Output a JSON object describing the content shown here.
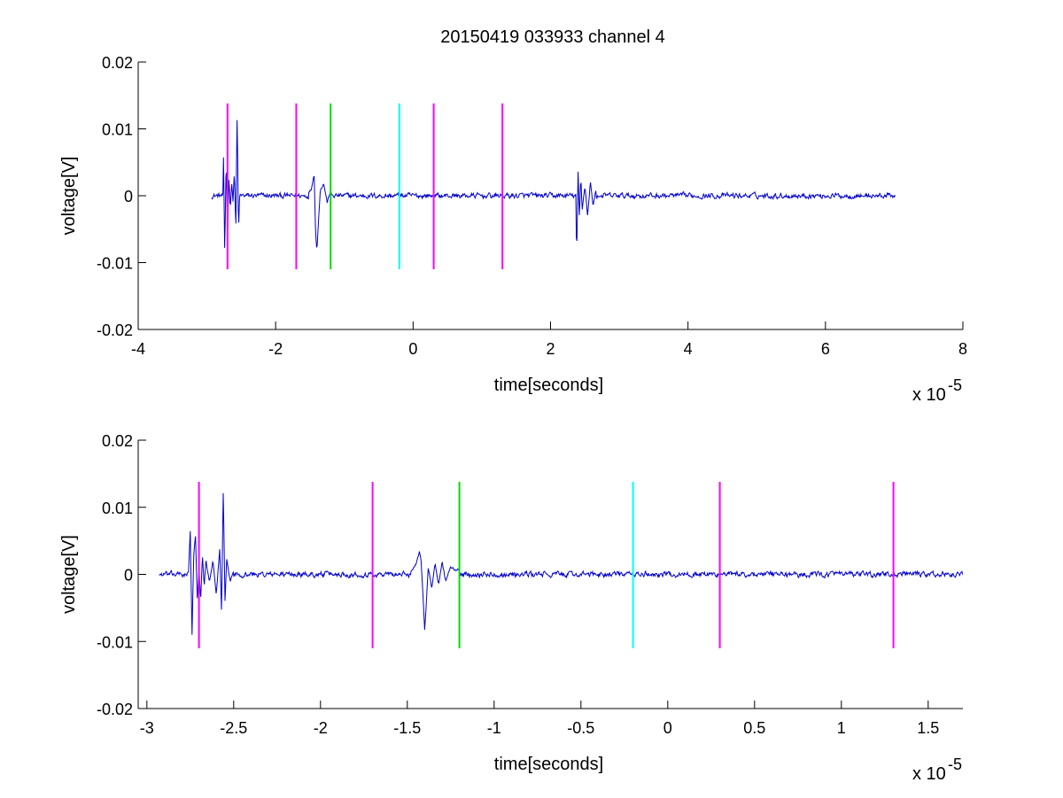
{
  "chart_data": [
    {
      "type": "line",
      "title": "20150419 033933 channel 4",
      "xlabel": "time[seconds]",
      "ylabel": "voltage[V]",
      "x_exponent_label": "x 10",
      "x_exponent_power": "-5",
      "xlim": [
        -4,
        8
      ],
      "ylim": [
        -0.02,
        0.02
      ],
      "xticks": [
        -4,
        -2,
        0,
        2,
        4,
        6,
        8
      ],
      "xtick_labels": [
        "-4",
        "-2",
        "0",
        "2",
        "4",
        "6",
        "8"
      ],
      "yticks": [
        -0.02,
        -0.01,
        0,
        0.01,
        0.02
      ],
      "ytick_labels": [
        "-0.02",
        "-0.01",
        "0",
        "0.01",
        "0.02"
      ],
      "grid": false,
      "signal": {
        "color": "#0000cc",
        "x_range": [
          -2.93,
          7.02
        ],
        "baseline": 0,
        "noise_amplitude": 0.0004,
        "events": [
          {
            "x": [
              -2.76,
              -2.74,
              -2.72,
              -2.7,
              -2.68,
              -2.66,
              -2.64,
              -2.62,
              -2.6,
              -2.58,
              -2.56,
              -2.54,
              -2.52
            ],
            "y": [
              0.0066,
              -0.009,
              0.0061,
              -0.006,
              0.003,
              -0.002,
              0.002,
              -0.001,
              0.004,
              -0.0055,
              0.0125,
              -0.0058,
              0.002
            ]
          },
          {
            "x": [
              -1.52,
              -1.48,
              -1.44,
              -1.42,
              -1.4,
              -1.38,
              -1.35,
              -1.3,
              -1.25,
              -1.2
            ],
            "y": [
              0.0005,
              0.001,
              0.0035,
              -0.005,
              -0.0083,
              -0.0045,
              0.001,
              0.0018,
              -0.001,
              0.0008
            ]
          },
          {
            "x": [
              2.36,
              2.38,
              2.4,
              2.42,
              2.44,
              2.46,
              2.5,
              2.54,
              2.58,
              2.62,
              2.66
            ],
            "y": [
              0.0058,
              -0.0098,
              0.004,
              -0.0035,
              0.003,
              -0.002,
              0.0015,
              -0.003,
              0.002,
              -0.0015,
              0.0008
            ]
          }
        ]
      },
      "markers": [
        {
          "x": -2.7,
          "color": "#ff00ff",
          "y_range": [
            -0.011,
            0.0138
          ]
        },
        {
          "x": -1.7,
          "color": "#ff00ff",
          "y_range": [
            -0.011,
            0.0138
          ]
        },
        {
          "x": -1.2,
          "color": "#00dd00",
          "y_range": [
            -0.011,
            0.0138
          ]
        },
        {
          "x": -0.2,
          "color": "#00ffff",
          "y_range": [
            -0.011,
            0.0138
          ]
        },
        {
          "x": 0.3,
          "color": "#ff00ff",
          "y_range": [
            -0.011,
            0.0138
          ]
        },
        {
          "x": 1.3,
          "color": "#ff00ff",
          "y_range": [
            -0.011,
            0.0138
          ]
        }
      ]
    },
    {
      "type": "line",
      "title": "",
      "xlabel": "time[seconds]",
      "ylabel": "voltage[V]",
      "x_exponent_label": "x 10",
      "x_exponent_power": "-5",
      "xlim": [
        -3.05,
        1.7
      ],
      "ylim": [
        -0.02,
        0.02
      ],
      "xticks": [
        -3,
        -2.5,
        -2,
        -1.5,
        -1,
        -0.5,
        0,
        0.5,
        1,
        1.5
      ],
      "xtick_labels": [
        "-3",
        "-2.5",
        "-2",
        "-1.5",
        "-1",
        "-0.5",
        "0",
        "0.5",
        "1",
        "1.5"
      ],
      "yticks": [
        -0.02,
        -0.01,
        0,
        0.01,
        0.02
      ],
      "ytick_labels": [
        "-0.02",
        "-0.01",
        "0",
        "0.01",
        "0.02"
      ],
      "grid": false,
      "signal": {
        "color": "#0000cc",
        "x_range": [
          -2.93,
          1.7
        ],
        "baseline": 0,
        "noise_amplitude": 0.0004,
        "events": [
          {
            "x": [
              -2.76,
              -2.75,
              -2.74,
              -2.73,
              -2.72,
              -2.71,
              -2.7,
              -2.69,
              -2.68,
              -2.67,
              -2.66,
              -2.64,
              -2.62,
              -2.6,
              -2.58,
              -2.57,
              -2.56,
              -2.55,
              -2.54,
              -2.52,
              -2.5
            ],
            "y": [
              0.0,
              0.0066,
              -0.009,
              0.003,
              0.0062,
              -0.004,
              0.001,
              -0.004,
              0.003,
              -0.002,
              0.002,
              -0.001,
              0.002,
              -0.003,
              0.004,
              -0.0058,
              0.0125,
              -0.004,
              0.002,
              -0.001,
              0.0005
            ]
          },
          {
            "x": [
              -1.48,
              -1.45,
              -1.43,
              -1.42,
              -1.41,
              -1.4,
              -1.39,
              -1.38,
              -1.36,
              -1.34,
              -1.32,
              -1.3,
              -1.28,
              -1.25,
              -1.22,
              -1.2
            ],
            "y": [
              0.0005,
              0.0015,
              0.0035,
              0.002,
              -0.003,
              -0.0083,
              -0.004,
              0.001,
              -0.002,
              0.0015,
              -0.0015,
              0.002,
              -0.001,
              0.001,
              0.0005,
              0.0008
            ]
          }
        ]
      },
      "markers": [
        {
          "x": -2.7,
          "color": "#ff00ff",
          "y_range": [
            -0.011,
            0.0138
          ]
        },
        {
          "x": -1.7,
          "color": "#ff00ff",
          "y_range": [
            -0.011,
            0.0138
          ]
        },
        {
          "x": -1.2,
          "color": "#00dd00",
          "y_range": [
            -0.011,
            0.0138
          ]
        },
        {
          "x": -0.2,
          "color": "#00ffff",
          "y_range": [
            -0.011,
            0.0138
          ]
        },
        {
          "x": 0.3,
          "color": "#ff00ff",
          "y_range": [
            -0.011,
            0.0138
          ]
        },
        {
          "x": 1.3,
          "color": "#ff00ff",
          "y_range": [
            -0.011,
            0.0138
          ]
        }
      ]
    }
  ]
}
